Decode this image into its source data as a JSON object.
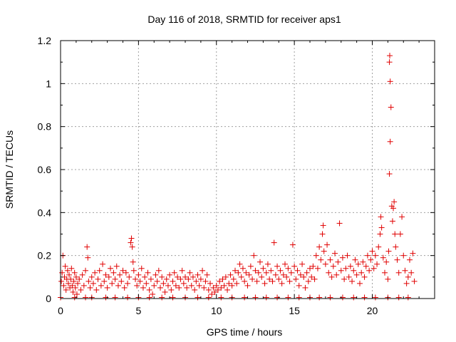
{
  "chart_data": {
    "type": "scatter",
    "title": "Day 116 of 2018, SRMTID for receiver aps1",
    "xlabel": "GPS time / hours",
    "ylabel": "SRMTID / TECUs",
    "xlim": [
      0,
      24
    ],
    "ylim": [
      0,
      1.2
    ],
    "xticks": [
      0,
      5,
      10,
      15,
      20
    ],
    "xtick_labels": [
      "0",
      "5",
      "10",
      "15",
      "20"
    ],
    "yticks": [
      0,
      0.2,
      0.4,
      0.6,
      0.8,
      1.0,
      1.2
    ],
    "ytick_labels": [
      "0",
      "0.2",
      "0.4",
      "0.6",
      "0.8",
      "1",
      "1.2"
    ],
    "grid": true,
    "marker": "plus",
    "color": "#e00000",
    "series": [
      {
        "name": "SRMTID",
        "points": [
          [
            0.05,
            0.08
          ],
          [
            0.1,
            0.12
          ],
          [
            0.15,
            0.2
          ],
          [
            0.2,
            0.06
          ],
          [
            0.25,
            0.1
          ],
          [
            0.3,
            0.15
          ],
          [
            0.35,
            0.04
          ],
          [
            0.4,
            0.09
          ],
          [
            0.45,
            0.13
          ],
          [
            0.5,
            0.07
          ],
          [
            0.55,
            0.11
          ],
          [
            0.6,
            0.05
          ],
          [
            0.65,
            0.09
          ],
          [
            0.7,
            0.14
          ],
          [
            0.75,
            0.06
          ],
          [
            0.8,
            0.03
          ],
          [
            0.85,
            0.08
          ],
          [
            0.9,
            0.12
          ],
          [
            0.95,
            0.05
          ],
          [
            1.0,
            0.1
          ],
          [
            1.05,
            0.02
          ],
          [
            1.1,
            0.07
          ],
          [
            1.2,
            0.09
          ],
          [
            1.3,
            0.04
          ],
          [
            1.4,
            0.11
          ],
          [
            1.5,
            0.06
          ],
          [
            1.6,
            0.13
          ],
          [
            1.7,
            0.24
          ],
          [
            1.75,
            0.19
          ],
          [
            1.8,
            0.08
          ],
          [
            1.9,
            0.05
          ],
          [
            2.0,
            0.1
          ],
          [
            2.1,
            0.07
          ],
          [
            2.2,
            0.12
          ],
          [
            2.3,
            0.04
          ],
          [
            2.4,
            0.09
          ],
          [
            2.5,
            0.13
          ],
          [
            2.6,
            0.06
          ],
          [
            2.7,
            0.16
          ],
          [
            2.8,
            0.08
          ],
          [
            2.9,
            0.11
          ],
          [
            3.0,
            0.05
          ],
          [
            3.1,
            0.1
          ],
          [
            3.2,
            0.14
          ],
          [
            3.3,
            0.07
          ],
          [
            3.4,
            0.12
          ],
          [
            3.5,
            0.09
          ],
          [
            3.6,
            0.15
          ],
          [
            3.7,
            0.06
          ],
          [
            3.8,
            0.11
          ],
          [
            3.9,
            0.08
          ],
          [
            4.0,
            0.13
          ],
          [
            4.1,
            0.05
          ],
          [
            4.2,
            0.12
          ],
          [
            4.3,
            0.07
          ],
          [
            4.4,
            0.1
          ],
          [
            4.5,
            0.26
          ],
          [
            4.55,
            0.28
          ],
          [
            4.6,
            0.24
          ],
          [
            4.65,
            0.17
          ],
          [
            4.7,
            0.13
          ],
          [
            4.8,
            0.09
          ],
          [
            4.9,
            0.06
          ],
          [
            5.0,
            0.11
          ],
          [
            5.1,
            0.08
          ],
          [
            5.2,
            0.14
          ],
          [
            5.3,
            0.05
          ],
          [
            5.4,
            0.1
          ],
          [
            5.5,
            0.07
          ],
          [
            5.6,
            0.12
          ],
          [
            5.7,
            0.04
          ],
          [
            5.8,
            0.09
          ],
          [
            5.9,
            0.02
          ],
          [
            6.0,
            0.06
          ],
          [
            6.1,
            0.11
          ],
          [
            6.2,
            0.08
          ],
          [
            6.3,
            0.13
          ],
          [
            6.4,
            0.05
          ],
          [
            6.5,
            0.1
          ],
          [
            6.6,
            0.07
          ],
          [
            6.7,
            0.03
          ],
          [
            6.8,
            0.09
          ],
          [
            6.9,
            0.06
          ],
          [
            7.0,
            0.11
          ],
          [
            7.1,
            0.04
          ],
          [
            7.2,
            0.08
          ],
          [
            7.3,
            0.12
          ],
          [
            7.4,
            0.06
          ],
          [
            7.5,
            0.1
          ],
          [
            7.6,
            0.05
          ],
          [
            7.7,
            0.09
          ],
          [
            7.8,
            0.13
          ],
          [
            7.9,
            0.07
          ],
          [
            8.0,
            0.1
          ],
          [
            8.1,
            0.05
          ],
          [
            8.2,
            0.09
          ],
          [
            8.3,
            0.12
          ],
          [
            8.4,
            0.06
          ],
          [
            8.5,
            0.1
          ],
          [
            8.6,
            0.04
          ],
          [
            8.7,
            0.08
          ],
          [
            8.8,
            0.11
          ],
          [
            8.9,
            0.06
          ],
          [
            9.0,
            0.09
          ],
          [
            9.1,
            0.13
          ],
          [
            9.2,
            0.05
          ],
          [
            9.3,
            0.08
          ],
          [
            9.4,
            0.11
          ],
          [
            9.5,
            0.04
          ],
          [
            9.6,
            0.07
          ],
          [
            9.7,
            0.02
          ],
          [
            9.8,
            0.05
          ],
          [
            9.9,
            0.03
          ],
          [
            10.0,
            0.06
          ],
          [
            10.1,
            0.04
          ],
          [
            10.2,
            0.08
          ],
          [
            10.3,
            0.05
          ],
          [
            10.4,
            0.09
          ],
          [
            10.5,
            0.06
          ],
          [
            10.6,
            0.1
          ],
          [
            10.7,
            0.04
          ],
          [
            10.8,
            0.07
          ],
          [
            10.9,
            0.11
          ],
          [
            11.0,
            0.06
          ],
          [
            11.1,
            0.09
          ],
          [
            11.2,
            0.13
          ],
          [
            11.3,
            0.07
          ],
          [
            11.4,
            0.12
          ],
          [
            11.5,
            0.16
          ],
          [
            11.6,
            0.1
          ],
          [
            11.7,
            0.14
          ],
          [
            11.8,
            0.08
          ],
          [
            11.9,
            0.12
          ],
          [
            12.0,
            0.06
          ],
          [
            12.1,
            0.11
          ],
          [
            12.2,
            0.15
          ],
          [
            12.3,
            0.09
          ],
          [
            12.4,
            0.2
          ],
          [
            12.5,
            0.13
          ],
          [
            12.6,
            0.08
          ],
          [
            12.7,
            0.12
          ],
          [
            12.8,
            0.17
          ],
          [
            12.9,
            0.1
          ],
          [
            13.0,
            0.14
          ],
          [
            13.1,
            0.07
          ],
          [
            13.2,
            0.12
          ],
          [
            13.3,
            0.16
          ],
          [
            13.4,
            0.09
          ],
          [
            13.5,
            0.13
          ],
          [
            13.6,
            0.08
          ],
          [
            13.7,
            0.26
          ],
          [
            13.8,
            0.11
          ],
          [
            13.9,
            0.15
          ],
          [
            14.0,
            0.09
          ],
          [
            14.1,
            0.13
          ],
          [
            14.2,
            0.07
          ],
          [
            14.3,
            0.11
          ],
          [
            14.4,
            0.16
          ],
          [
            14.5,
            0.1
          ],
          [
            14.6,
            0.14
          ],
          [
            14.7,
            0.08
          ],
          [
            14.8,
            0.12
          ],
          [
            14.9,
            0.25
          ],
          [
            15.0,
            0.15
          ],
          [
            15.1,
            0.09
          ],
          [
            15.2,
            0.13
          ],
          [
            15.3,
            0.06
          ],
          [
            15.4,
            0.11
          ],
          [
            15.5,
            0.16
          ],
          [
            15.6,
            0.1
          ],
          [
            15.7,
            0.05
          ],
          [
            15.8,
            0.12
          ],
          [
            15.9,
            0.08
          ],
          [
            16.0,
            0.14
          ],
          [
            16.1,
            0.1
          ],
          [
            16.2,
            0.15
          ],
          [
            16.3,
            0.09
          ],
          [
            16.4,
            0.2
          ],
          [
            16.5,
            0.14
          ],
          [
            16.6,
            0.24
          ],
          [
            16.7,
            0.18
          ],
          [
            16.8,
            0.3
          ],
          [
            16.85,
            0.34
          ],
          [
            16.9,
            0.22
          ],
          [
            17.0,
            0.16
          ],
          [
            17.1,
            0.25
          ],
          [
            17.2,
            0.12
          ],
          [
            17.3,
            0.18
          ],
          [
            17.4,
            0.1
          ],
          [
            17.5,
            0.15
          ],
          [
            17.6,
            0.21
          ],
          [
            17.7,
            0.11
          ],
          [
            17.8,
            0.17
          ],
          [
            17.9,
            0.35
          ],
          [
            18.0,
            0.13
          ],
          [
            18.1,
            0.19
          ],
          [
            18.2,
            0.09
          ],
          [
            18.3,
            0.14
          ],
          [
            18.4,
            0.2
          ],
          [
            18.5,
            0.1
          ],
          [
            18.6,
            0.15
          ],
          [
            18.7,
            0.08
          ],
          [
            18.8,
            0.13
          ],
          [
            18.9,
            0.18
          ],
          [
            19.0,
            0.11
          ],
          [
            19.1,
            0.16
          ],
          [
            19.2,
            0.07
          ],
          [
            19.3,
            0.12
          ],
          [
            19.4,
            0.17
          ],
          [
            19.5,
            0.1
          ],
          [
            19.6,
            0.15
          ],
          [
            19.7,
            0.2
          ],
          [
            19.8,
            0.13
          ],
          [
            19.9,
            0.18
          ],
          [
            20.0,
            0.22
          ],
          [
            20.1,
            0.14
          ],
          [
            20.2,
            0.2
          ],
          [
            20.3,
            0.16
          ],
          [
            20.4,
            0.24
          ],
          [
            20.5,
            0.3
          ],
          [
            20.55,
            0.38
          ],
          [
            20.6,
            0.33
          ],
          [
            20.7,
            0.19
          ],
          [
            20.8,
            0.12
          ],
          [
            20.9,
            0.17
          ],
          [
            21.0,
            0.09
          ],
          [
            21.05,
            0.22
          ],
          [
            21.1,
            0.58
          ],
          [
            21.15,
            0.73
          ],
          [
            21.2,
            0.89
          ],
          [
            21.15,
            1.01
          ],
          [
            21.1,
            1.1
          ],
          [
            21.12,
            1.13
          ],
          [
            21.25,
            0.43
          ],
          [
            21.3,
            0.36
          ],
          [
            21.35,
            0.42
          ],
          [
            21.4,
            0.45
          ],
          [
            21.45,
            0.3
          ],
          [
            21.5,
            0.24
          ],
          [
            21.6,
            0.18
          ],
          [
            21.7,
            0.12
          ],
          [
            21.8,
            0.3
          ],
          [
            21.9,
            0.38
          ],
          [
            22.0,
            0.2
          ],
          [
            22.1,
            0.13
          ],
          [
            22.2,
            0.07
          ],
          [
            22.3,
            0.1
          ],
          [
            22.4,
            0.18
          ],
          [
            22.5,
            0.12
          ],
          [
            22.6,
            0.21
          ],
          [
            22.7,
            0.08
          ],
          [
            0.0,
            0.005
          ],
          [
            0.9,
            0.005
          ],
          [
            1.6,
            0.005
          ],
          [
            2.0,
            0.005
          ],
          [
            2.9,
            0.005
          ],
          [
            3.5,
            0.005
          ],
          [
            4.3,
            0.005
          ],
          [
            5.0,
            0.005
          ],
          [
            5.7,
            0.005
          ],
          [
            6.5,
            0.005
          ],
          [
            7.2,
            0.005
          ],
          [
            8.0,
            0.005
          ],
          [
            8.8,
            0.005
          ],
          [
            9.5,
            0.005
          ],
          [
            10.3,
            0.005
          ],
          [
            11.0,
            0.005
          ],
          [
            11.8,
            0.005
          ],
          [
            12.5,
            0.005
          ],
          [
            13.2,
            0.005
          ],
          [
            13.9,
            0.005
          ],
          [
            14.6,
            0.005
          ],
          [
            15.3,
            0.005
          ],
          [
            16.0,
            0.005
          ],
          [
            16.6,
            0.005
          ],
          [
            17.3,
            0.005
          ],
          [
            18.1,
            0.005
          ],
          [
            18.8,
            0.005
          ],
          [
            19.5,
            0.005
          ],
          [
            20.2,
            0.005
          ],
          [
            21.0,
            0.005
          ],
          [
            21.7,
            0.005
          ],
          [
            22.3,
            0.005
          ]
        ]
      }
    ]
  }
}
